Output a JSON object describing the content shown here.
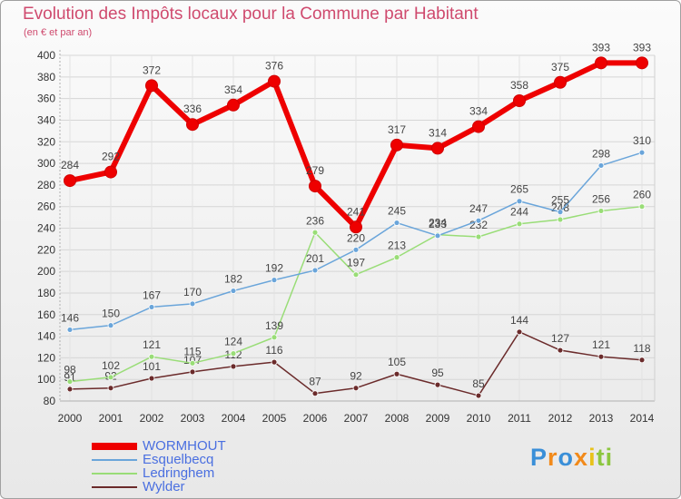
{
  "title": "Evolution des Impôts locaux pour la Commune par Habitant",
  "subtitle": "(en € et par an)",
  "brand": "Proxiti",
  "chart_data": {
    "type": "line",
    "title": "Evolution des Impôts locaux pour la Commune par Habitant",
    "subtitle": "(en € et par an)",
    "xlabel": "",
    "ylabel": "",
    "ylim": [
      80,
      400
    ],
    "yticks": [
      80,
      100,
      120,
      140,
      160,
      180,
      200,
      220,
      240,
      260,
      280,
      300,
      320,
      340,
      360,
      380,
      400
    ],
    "categories": [
      "2000",
      "2001",
      "2002",
      "2003",
      "2004",
      "2005",
      "2006",
      "2007",
      "2008",
      "2009",
      "2010",
      "2011",
      "2012",
      "2013",
      "2014"
    ],
    "grid": true,
    "legend_position": "bottom-left",
    "series": [
      {
        "name": "Wylder",
        "color": "#6b2b2b",
        "values": [
          91,
          92,
          101,
          107,
          112,
          116,
          87,
          92,
          105,
          95,
          85,
          144,
          127,
          121,
          118
        ]
      },
      {
        "name": "Ledringhem",
        "color": "#99dd77",
        "values": [
          98,
          102,
          121,
          115,
          124,
          139,
          236,
          197,
          213,
          234,
          232,
          244,
          248,
          256,
          260
        ]
      },
      {
        "name": "Esquelbecq",
        "color": "#6aa5da",
        "values": [
          146,
          150,
          167,
          170,
          182,
          192,
          201,
          220,
          245,
          233,
          247,
          265,
          255,
          298,
          310
        ]
      },
      {
        "name": "WORMHOUT",
        "color": "#ee0000",
        "values": [
          284,
          292,
          372,
          336,
          354,
          376,
          279,
          241,
          317,
          314,
          334,
          358,
          375,
          393,
          393
        ]
      }
    ]
  }
}
